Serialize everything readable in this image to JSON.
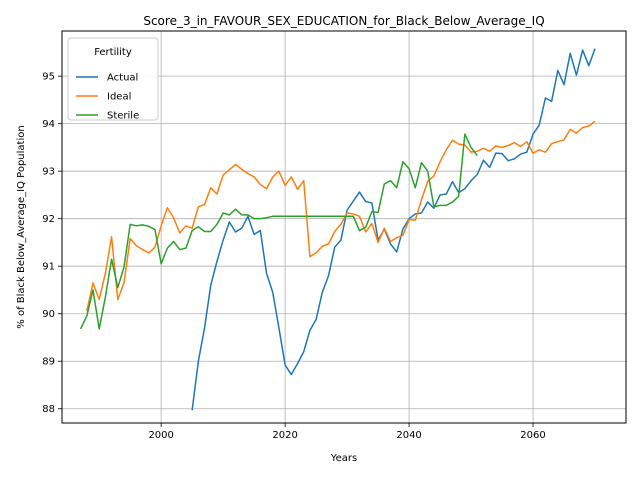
{
  "chart_data": {
    "type": "line",
    "title": "Score_3_in_FAVOUR_SEX_EDUCATION_for_Black_Below_Average_IQ",
    "xlabel": "Years",
    "ylabel": "% of Black Below_Average_IQ Population",
    "xlim": [
      1984,
      2075
    ],
    "ylim": [
      87.7,
      95.95
    ],
    "xticks": [
      2000,
      2020,
      2040,
      2060
    ],
    "yticks": [
      88,
      89,
      90,
      91,
      92,
      93,
      94,
      95
    ],
    "grid": true,
    "legend": {
      "title": "Fertility",
      "position": "top-left"
    },
    "series": [
      {
        "name": "Actual",
        "color": "#1f77b4",
        "points": [
          [
            2005,
            87.97
          ],
          [
            2006,
            89.0
          ],
          [
            2007,
            89.7
          ],
          [
            2008,
            90.6
          ],
          [
            2009,
            91.1
          ],
          [
            2010,
            91.55
          ],
          [
            2011,
            91.93
          ],
          [
            2012,
            91.72
          ],
          [
            2013,
            91.8
          ],
          [
            2014,
            92.05
          ],
          [
            2015,
            91.67
          ],
          [
            2016,
            91.75
          ],
          [
            2017,
            90.85
          ],
          [
            2018,
            90.45
          ],
          [
            2019,
            89.7
          ],
          [
            2020,
            88.92
          ],
          [
            2021,
            88.72
          ],
          [
            2022,
            88.95
          ],
          [
            2023,
            89.2
          ],
          [
            2024,
            89.65
          ],
          [
            2025,
            89.88
          ],
          [
            2026,
            90.45
          ],
          [
            2027,
            90.8
          ],
          [
            2028,
            91.4
          ],
          [
            2029,
            91.55
          ],
          [
            2030,
            92.18
          ],
          [
            2031,
            92.37
          ],
          [
            2032,
            92.56
          ],
          [
            2033,
            92.36
          ],
          [
            2034,
            92.33
          ],
          [
            2035,
            91.55
          ],
          [
            2036,
            91.78
          ],
          [
            2037,
            91.47
          ],
          [
            2038,
            91.3
          ],
          [
            2039,
            91.78
          ],
          [
            2040,
            92.0
          ],
          [
            2041,
            92.1
          ],
          [
            2042,
            92.12
          ],
          [
            2043,
            92.35
          ],
          [
            2044,
            92.22
          ],
          [
            2045,
            92.5
          ],
          [
            2046,
            92.52
          ],
          [
            2047,
            92.78
          ],
          [
            2048,
            92.55
          ],
          [
            2049,
            92.63
          ],
          [
            2050,
            92.8
          ],
          [
            2051,
            92.93
          ],
          [
            2052,
            93.23
          ],
          [
            2053,
            93.08
          ],
          [
            2054,
            93.38
          ],
          [
            2055,
            93.37
          ],
          [
            2056,
            93.22
          ],
          [
            2057,
            93.26
          ],
          [
            2058,
            93.36
          ],
          [
            2059,
            93.4
          ],
          [
            2060,
            93.78
          ],
          [
            2061,
            93.97
          ],
          [
            2062,
            94.54
          ],
          [
            2063,
            94.47
          ],
          [
            2064,
            95.12
          ],
          [
            2065,
            94.82
          ],
          [
            2066,
            95.48
          ],
          [
            2067,
            95.02
          ],
          [
            2068,
            95.55
          ],
          [
            2069,
            95.22
          ],
          [
            2070,
            95.58
          ]
        ]
      },
      {
        "name": "Ideal",
        "color": "#ff7f0e",
        "points": [
          [
            1988,
            90.05
          ],
          [
            1989,
            90.65
          ],
          [
            1990,
            90.3
          ],
          [
            1991,
            90.85
          ],
          [
            1992,
            91.62
          ],
          [
            1993,
            90.3
          ],
          [
            1994,
            90.65
          ],
          [
            1995,
            91.58
          ],
          [
            1996,
            91.43
          ],
          [
            1997,
            91.35
          ],
          [
            1998,
            91.28
          ],
          [
            1999,
            91.4
          ],
          [
            2000,
            91.85
          ],
          [
            2001,
            92.23
          ],
          [
            2002,
            92.02
          ],
          [
            2003,
            91.7
          ],
          [
            2004,
            91.85
          ],
          [
            2005,
            91.8
          ],
          [
            2006,
            92.25
          ],
          [
            2007,
            92.3
          ],
          [
            2008,
            92.65
          ],
          [
            2009,
            92.52
          ],
          [
            2010,
            92.92
          ],
          [
            2011,
            93.03
          ],
          [
            2012,
            93.14
          ],
          [
            2013,
            93.04
          ],
          [
            2014,
            92.95
          ],
          [
            2015,
            92.88
          ],
          [
            2016,
            92.72
          ],
          [
            2017,
            92.63
          ],
          [
            2018,
            92.88
          ],
          [
            2019,
            93.0
          ],
          [
            2020,
            92.7
          ],
          [
            2021,
            92.88
          ],
          [
            2022,
            92.62
          ],
          [
            2023,
            92.8
          ],
          [
            2024,
            91.2
          ],
          [
            2025,
            91.28
          ],
          [
            2026,
            91.42
          ],
          [
            2027,
            91.47
          ],
          [
            2028,
            91.73
          ],
          [
            2029,
            91.88
          ],
          [
            2030,
            92.12
          ],
          [
            2031,
            92.1
          ],
          [
            2032,
            92.05
          ],
          [
            2033,
            91.72
          ],
          [
            2034,
            91.9
          ],
          [
            2035,
            91.5
          ],
          [
            2036,
            91.8
          ],
          [
            2037,
            91.52
          ],
          [
            2038,
            91.6
          ],
          [
            2039,
            91.65
          ],
          [
            2040,
            91.98
          ],
          [
            2041,
            91.97
          ],
          [
            2042,
            92.4
          ],
          [
            2043,
            92.78
          ],
          [
            2044,
            92.9
          ],
          [
            2045,
            93.2
          ],
          [
            2046,
            93.45
          ],
          [
            2047,
            93.65
          ],
          [
            2048,
            93.57
          ],
          [
            2049,
            93.55
          ],
          [
            2050,
            93.4
          ],
          [
            2051,
            93.42
          ],
          [
            2052,
            93.48
          ],
          [
            2053,
            93.42
          ],
          [
            2054,
            93.53
          ],
          [
            2055,
            93.5
          ],
          [
            2056,
            93.54
          ],
          [
            2057,
            93.6
          ],
          [
            2058,
            93.52
          ],
          [
            2059,
            93.62
          ],
          [
            2060,
            93.38
          ],
          [
            2061,
            93.45
          ],
          [
            2062,
            93.4
          ],
          [
            2063,
            93.58
          ],
          [
            2064,
            93.62
          ],
          [
            2065,
            93.66
          ],
          [
            2066,
            93.88
          ],
          [
            2067,
            93.8
          ],
          [
            2068,
            93.92
          ],
          [
            2069,
            93.95
          ],
          [
            2070,
            94.05
          ]
        ]
      },
      {
        "name": "Sterile",
        "color": "#2ca02c",
        "points": [
          [
            1987,
            89.68
          ],
          [
            1988,
            89.95
          ],
          [
            1989,
            90.5
          ],
          [
            1990,
            89.68
          ],
          [
            1991,
            90.35
          ],
          [
            1992,
            91.15
          ],
          [
            1993,
            90.55
          ],
          [
            1994,
            90.98
          ],
          [
            1995,
            91.88
          ],
          [
            1996,
            91.85
          ],
          [
            1997,
            91.87
          ],
          [
            1998,
            91.84
          ],
          [
            1999,
            91.77
          ],
          [
            2000,
            91.05
          ],
          [
            2001,
            91.38
          ],
          [
            2002,
            91.52
          ],
          [
            2003,
            91.35
          ],
          [
            2004,
            91.38
          ],
          [
            2005,
            91.75
          ],
          [
            2006,
            91.83
          ],
          [
            2007,
            91.73
          ],
          [
            2008,
            91.73
          ],
          [
            2009,
            91.88
          ],
          [
            2010,
            92.12
          ],
          [
            2011,
            92.08
          ],
          [
            2012,
            92.2
          ],
          [
            2013,
            92.08
          ],
          [
            2014,
            92.08
          ],
          [
            2015,
            92.0
          ],
          [
            2016,
            92.0
          ],
          [
            2017,
            92.02
          ],
          [
            2018,
            92.05
          ],
          [
            2019,
            92.05
          ],
          [
            2020,
            92.05
          ],
          [
            2021,
            92.05
          ],
          [
            2022,
            92.05
          ],
          [
            2023,
            92.05
          ],
          [
            2024,
            92.05
          ],
          [
            2025,
            92.05
          ],
          [
            2026,
            92.05
          ],
          [
            2027,
            92.05
          ],
          [
            2028,
            92.05
          ],
          [
            2029,
            92.05
          ],
          [
            2030,
            92.05
          ],
          [
            2031,
            92.05
          ],
          [
            2032,
            91.75
          ],
          [
            2033,
            91.82
          ],
          [
            2034,
            92.15
          ],
          [
            2035,
            92.13
          ],
          [
            2036,
            92.73
          ],
          [
            2037,
            92.8
          ],
          [
            2038,
            92.65
          ],
          [
            2039,
            93.2
          ],
          [
            2040,
            93.05
          ],
          [
            2041,
            92.65
          ],
          [
            2042,
            93.18
          ],
          [
            2043,
            93.0
          ],
          [
            2044,
            92.25
          ],
          [
            2045,
            92.28
          ],
          [
            2046,
            92.28
          ],
          [
            2047,
            92.35
          ],
          [
            2048,
            92.47
          ],
          [
            2049,
            93.78
          ],
          [
            2050,
            93.5
          ],
          [
            2051,
            93.33
          ]
        ]
      }
    ]
  }
}
